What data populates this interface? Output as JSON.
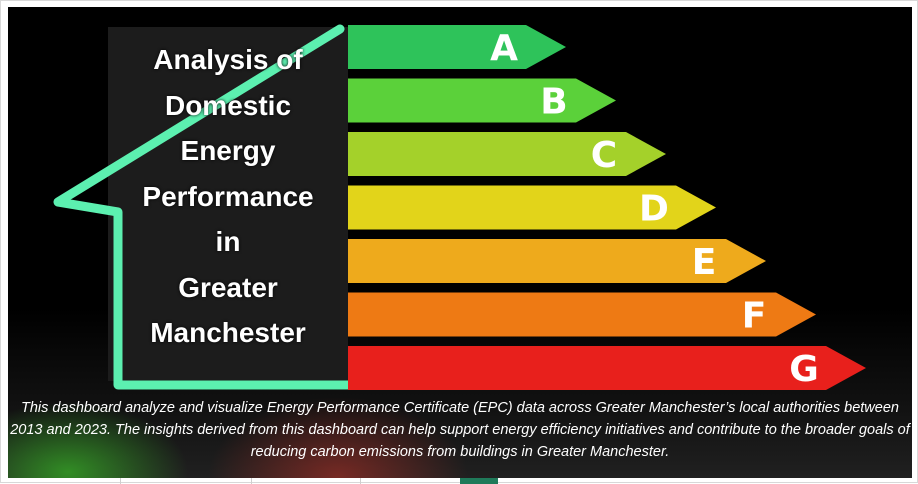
{
  "title_lines": [
    "Analysis of",
    "Domestic",
    "Energy",
    "Performance",
    "in",
    "Greater",
    "Manchester"
  ],
  "description": "This dashboard analyze and visualize Energy Performance Certificate (EPC) data across Greater Manchester’s local authorities between 2013 and 2023. The insights derived from this dashboard can help support energy efficiency initiatives and contribute to the broader goals of reducing carbon emissions from buildings in Greater Manchester.",
  "ratings": [
    {
      "label": "A",
      "color": "#2ec35a"
    },
    {
      "label": "B",
      "color": "#5bd13a"
    },
    {
      "label": "C",
      "color": "#a4d12a"
    },
    {
      "label": "D",
      "color": "#e2d41a"
    },
    {
      "label": "E",
      "color": "#eeaa1c"
    },
    {
      "label": "F",
      "color": "#ee7a14"
    },
    {
      "label": "G",
      "color": "#e8201c"
    }
  ],
  "colors": {
    "house_outline": "#5cf0b0",
    "background": "#000000",
    "title_box": "#1c1c1c",
    "tab_active": "#1f7a5a"
  },
  "icons": {
    "house": "house-outline-icon"
  }
}
